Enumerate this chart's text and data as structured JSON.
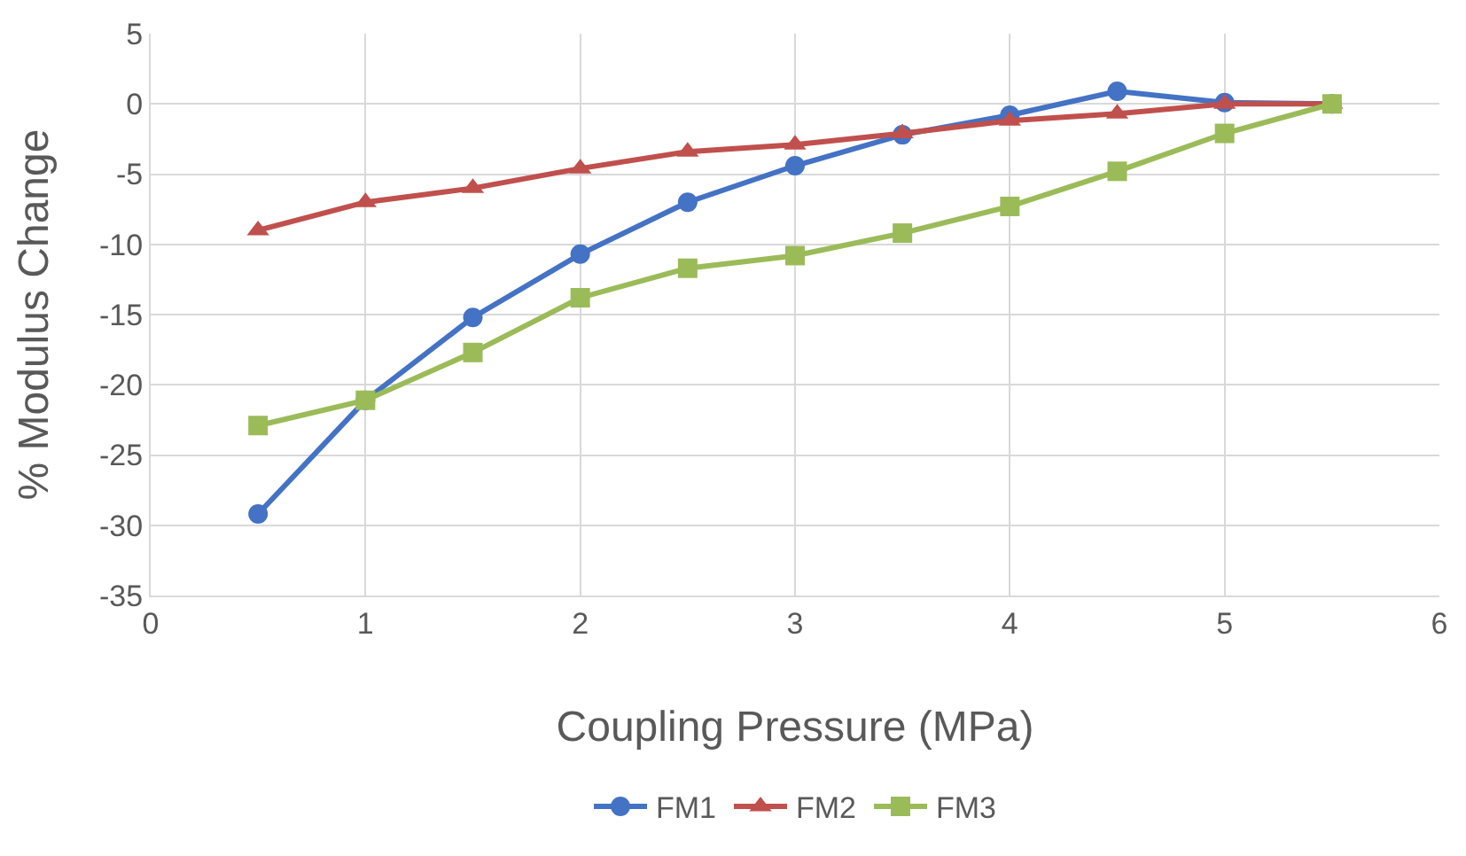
{
  "chart_data": {
    "type": "line",
    "xlabel": "Coupling Pressure (MPa)",
    "ylabel": "% Modulus Change",
    "x": [
      0.5,
      1,
      1.5,
      2,
      2.5,
      3,
      3.5,
      4,
      4.5,
      5,
      5.5
    ],
    "series": [
      {
        "name": "FM1",
        "color": "#4472c4",
        "marker": "circle",
        "values": [
          -29.2,
          -21.1,
          -15.2,
          -10.7,
          -7.0,
          -4.4,
          -2.2,
          -0.8,
          0.9,
          0.1,
          0
        ]
      },
      {
        "name": "FM2",
        "color": "#c0504d",
        "marker": "triangle",
        "values": [
          -9.0,
          -7.0,
          -6.0,
          -4.6,
          -3.4,
          -2.9,
          -2.1,
          -1.2,
          -0.7,
          0,
          0
        ]
      },
      {
        "name": "FM3",
        "color": "#9bbb59",
        "marker": "square",
        "values": [
          -22.9,
          -21.1,
          -17.7,
          -13.8,
          -11.7,
          -10.8,
          -9.2,
          -7.3,
          -4.8,
          -2.1,
          0
        ]
      }
    ],
    "xlim": [
      0,
      6
    ],
    "xticks": [
      0,
      1,
      2,
      3,
      4,
      5,
      6
    ],
    "ylim": [
      -35,
      5
    ],
    "yticks": [
      -35,
      -30,
      -25,
      -20,
      -15,
      -10,
      -5,
      0,
      5
    ],
    "grid": true,
    "legend": "bottom",
    "line_style": "solid"
  }
}
